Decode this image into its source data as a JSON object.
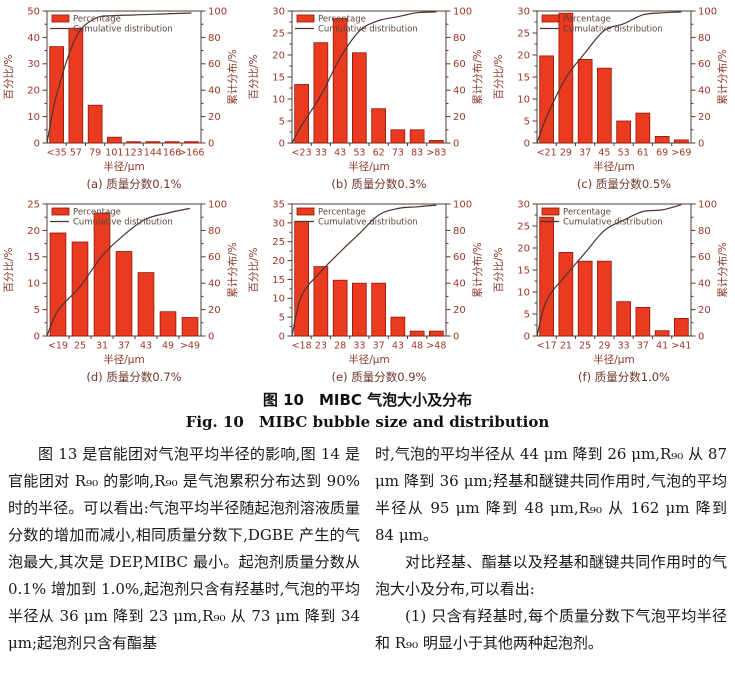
{
  "figure": {
    "caption_cn": "图 10　MIBC 气泡大小及分布",
    "caption_en": "Fig. 10　MIBC bubble size and distribution"
  },
  "chart_data": {
    "type": "bar",
    "legend": [
      "Percentage",
      "Cumulative distribution"
    ],
    "xlabel": "半径/μm",
    "ylabel_left": "百分比/%",
    "ylabel_right": "累计分布/%",
    "ylim_right": [
      0,
      100
    ],
    "legend_position": "top-left",
    "colors": {
      "bar": "#ea3a20",
      "bar_edge": "#8d1a0c",
      "line": "#4a3430",
      "tick_text": "#9d3726",
      "label_text": "#8a3628",
      "caption_text": "#6e362c",
      "legend_text": "#5c443c",
      "spine": "#4f3b34"
    },
    "charts": [
      {
        "id": "a",
        "caption": "(a) 质量分数0.1%",
        "ylim_left": [
          0,
          50
        ],
        "ytick_step": 10,
        "categories": [
          "<35",
          "57",
          "79",
          "101",
          "123",
          "144",
          "166",
          ">166"
        ],
        "values": [
          36.5,
          43.5,
          14.3,
          2.2,
          0.5,
          0.5,
          0.5,
          0.5
        ],
        "cumulative": [
          36.5,
          80.0,
          94.3,
          96.5,
          97.0,
          97.5,
          98.0,
          98.5
        ]
      },
      {
        "id": "b",
        "caption": "(b) 质量分数0.3%",
        "ylim_left": [
          0,
          30
        ],
        "ytick_step": 5,
        "categories": [
          "<23",
          "33",
          "43",
          "53",
          "62",
          "73",
          "83",
          ">83"
        ],
        "values": [
          13.3,
          22.8,
          28.3,
          20.5,
          7.8,
          3.0,
          3.0,
          0.6
        ],
        "cumulative": [
          13.3,
          36.1,
          64.4,
          84.9,
          92.7,
          95.7,
          98.7,
          99.3
        ]
      },
      {
        "id": "c",
        "caption": "(c) 质量分数0.5%",
        "ylim_left": [
          0,
          30
        ],
        "ytick_step": 5,
        "categories": [
          "<21",
          "29",
          "37",
          "45",
          "53",
          "61",
          "69",
          ">69"
        ],
        "values": [
          19.8,
          29.5,
          19.0,
          17.0,
          5.0,
          6.8,
          1.5,
          0.7
        ],
        "cumulative": [
          19.8,
          49.3,
          68.3,
          85.3,
          90.3,
          97.1,
          98.6,
          99.3
        ]
      },
      {
        "id": "d",
        "caption": "(d) 质量分数0.7%",
        "ylim_left": [
          0,
          25
        ],
        "ytick_step": 5,
        "categories": [
          "<19",
          "25",
          "31",
          "37",
          "43",
          "49",
          ">49"
        ],
        "values": [
          19.5,
          17.8,
          23.3,
          16.0,
          12.0,
          4.6,
          3.5
        ],
        "cumulative": [
          19.5,
          37.3,
          60.6,
          76.6,
          88.6,
          93.2,
          96.7
        ]
      },
      {
        "id": "e",
        "caption": "(e) 质量分数0.9%",
        "ylim_left": [
          0,
          35
        ],
        "ytick_step": 5,
        "categories": [
          "<18",
          "23",
          "28",
          "33",
          "37",
          "43",
          "48",
          ">48"
        ],
        "values": [
          30.4,
          18.4,
          14.8,
          14.0,
          14.0,
          5.0,
          1.3,
          1.3
        ],
        "cumulative": [
          30.4,
          48.8,
          63.6,
          77.6,
          91.6,
          96.6,
          97.9,
          99.2
        ]
      },
      {
        "id": "f",
        "caption": "(f) 质量分数1.0%",
        "ylim_left": [
          0,
          30
        ],
        "ytick_step": 5,
        "categories": [
          "<17",
          "21",
          "25",
          "29",
          "33",
          "37",
          "41",
          ">41"
        ],
        "values": [
          27.0,
          19.0,
          17.0,
          17.0,
          7.8,
          6.5,
          1.2,
          4.0
        ],
        "cumulative": [
          27.0,
          46.0,
          63.0,
          80.0,
          87.8,
          94.3,
          95.5,
          99.5
        ]
      }
    ]
  },
  "article": {
    "left_column": [
      "图 13 是官能团对气泡平均半径的影响,图 14 是官能团对 R₉₀ 的影响,R₉₀ 是气泡累积分布达到 90% 时的半径。可以看出:气泡平均半径随起泡剂溶液质量分数的增加而减小,相同质量分数下,DGBE 产生的气泡最大,其次是 DEP,MIBC 最小。起泡剂质量分数从 0.1% 增加到 1.0%,起泡剂只含有羟基时,气泡的平均半径从 36 μm 降到 23 μm,R₉₀ 从 73 μm 降到 34 μm;起泡剂只含有酯基"
    ],
    "right_column": [
      "时,气泡的平均半径从 44 μm 降到 26 μm,R₉₀ 从 87 μm 降到 36 μm;羟基和醚键共同作用时,气泡的平均半径从 95 μm 降到 48 μm,R₉₀ 从 162 μm 降到 84 μm。",
      "对比羟基、酯基以及羟基和醚键共同作用时的气泡大小及分布,可以看出:",
      "(1) 只含有羟基时,每个质量分数下气泡平均半径和 R₉₀ 明显小于其他两种起泡剂。"
    ]
  }
}
